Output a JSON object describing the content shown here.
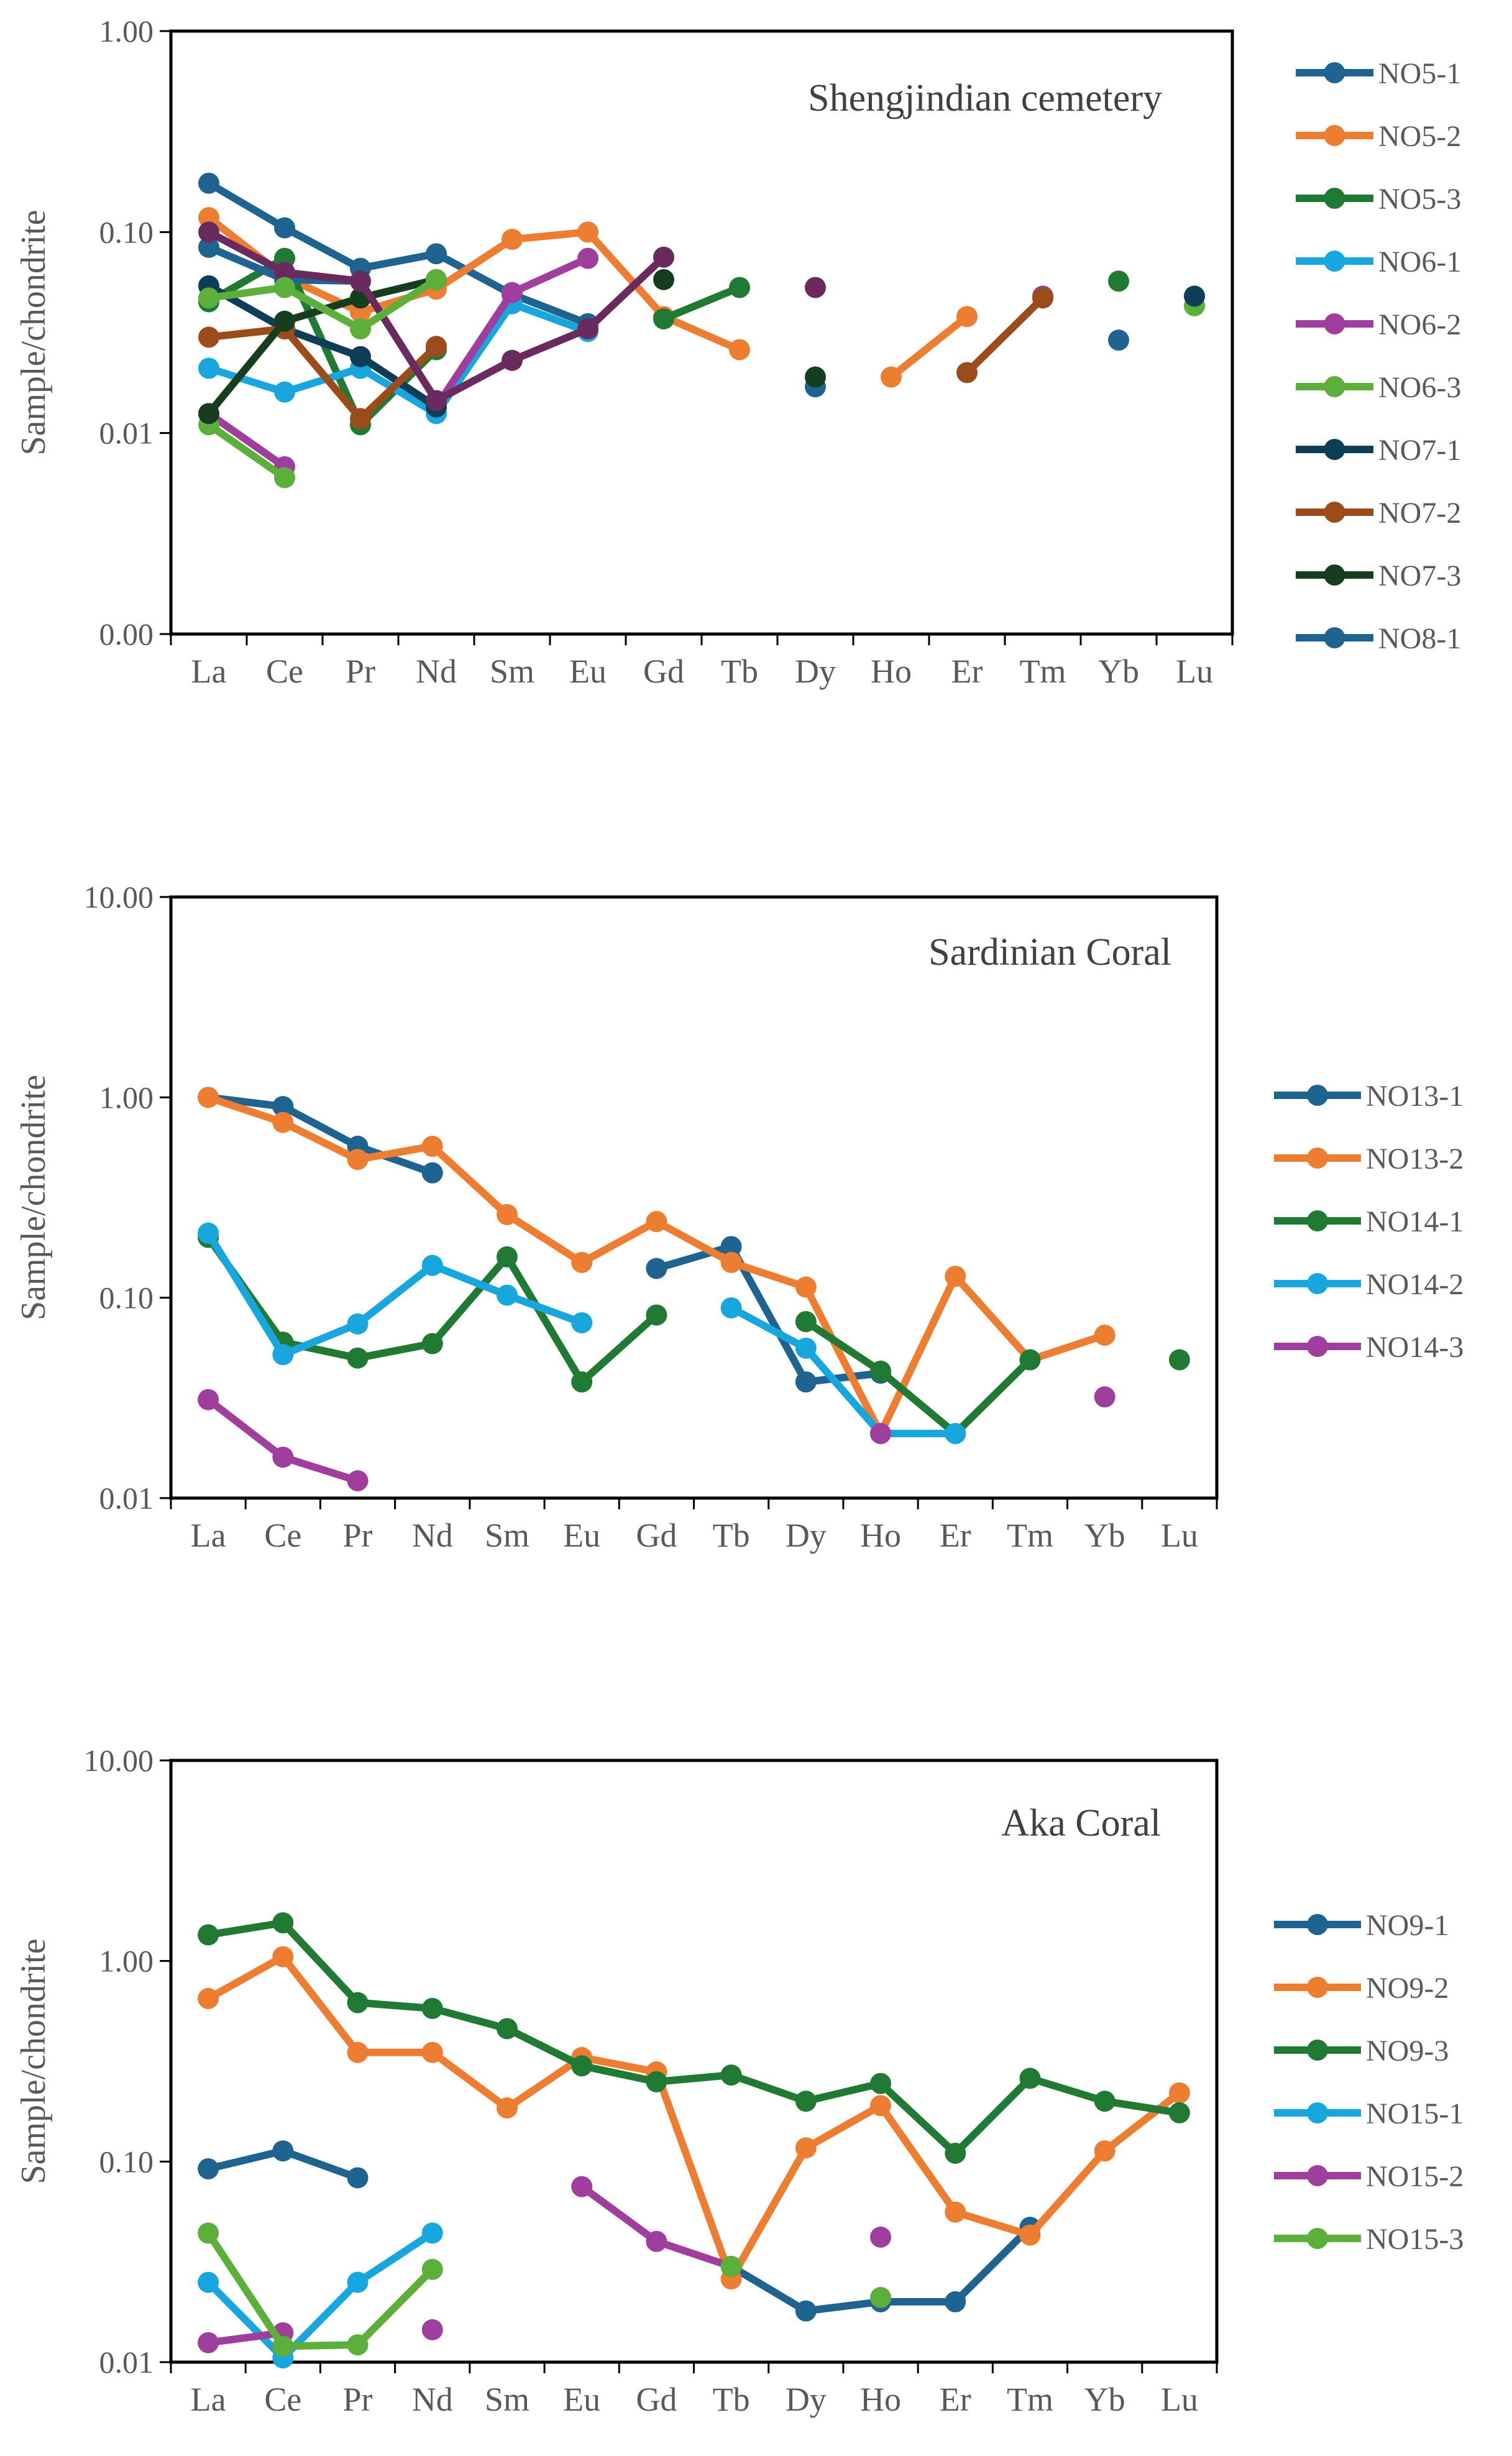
{
  "categories": [
    "La",
    "Ce",
    "Pr",
    "Nd",
    "Sm",
    "Eu",
    "Gd",
    "Tb",
    "Dy",
    "Ho",
    "Er",
    "Tm",
    "Yb",
    "Lu"
  ],
  "colors": {
    "steel_blue": "#1f6391",
    "orange": "#ed7d31",
    "green": "#217a33",
    "sky_blue": "#18a6de",
    "magenta": "#a03e9e",
    "light_green": "#5caf3a",
    "navy": "#0d3d57",
    "brown": "#9c4c1a",
    "dark_green": "#173d1f",
    "purple": "#6b2a5e"
  },
  "chart_data": [
    {
      "type": "line",
      "title": "Shengjindian cemetery",
      "ylabel": "Sample/chondrite",
      "xlabel": "",
      "yscale": "log",
      "ylim": [
        0.001,
        1
      ],
      "yticks": [
        0.001,
        0.01,
        0.1,
        1
      ],
      "yticklabels": [
        "0.00",
        "0.01",
        "0.10",
        "1.00"
      ],
      "categories": [
        "La",
        "Ce",
        "Pr",
        "Nd",
        "Sm",
        "Eu",
        "Gd",
        "Tb",
        "Dy",
        "Ho",
        "Er",
        "Tm",
        "Yb",
        "Lu"
      ],
      "legend": "right",
      "series": [
        {
          "name": "NO5-1",
          "color": "#1f6391",
          "values": [
            0.175,
            0.105,
            0.066,
            0.078,
            0.049,
            0.035,
            null,
            null,
            0.017,
            null,
            null,
            null,
            0.029,
            null
          ]
        },
        {
          "name": "NO5-2",
          "color": "#ed7d31",
          "values": [
            0.118,
            0.06,
            0.04,
            0.052,
            0.092,
            0.1,
            0.038,
            0.026,
            null,
            0.019,
            0.038,
            null,
            null,
            null
          ]
        },
        {
          "name": "NO5-3",
          "color": "#217a33",
          "values": [
            0.045,
            0.074,
            0.011,
            0.026,
            null,
            null,
            0.037,
            0.053,
            null,
            null,
            null,
            null,
            0.057,
            null
          ]
        },
        {
          "name": "NO6-1",
          "color": "#18a6de",
          "values": [
            0.021,
            0.016,
            0.021,
            0.0125,
            0.044,
            0.032,
            null,
            null,
            null,
            null,
            null,
            null,
            null,
            null
          ]
        },
        {
          "name": "NO6-2",
          "color": "#a03e9e",
          "values": [
            0.0125,
            0.0068,
            null,
            0.0135,
            0.05,
            0.074,
            null,
            null,
            null,
            null,
            null,
            0.048,
            null,
            null
          ]
        },
        {
          "name": "NO6-3",
          "color": "#5caf3a",
          "values": [
            0.011,
            0.006,
            null,
            null,
            null,
            null,
            null,
            null,
            null,
            null,
            null,
            null,
            null,
            0.043
          ]
        },
        {
          "name": "NO7-1",
          "color": "#0d3d57",
          "values": [
            0.054,
            0.033,
            0.024,
            0.0135,
            null,
            null,
            null,
            null,
            null,
            null,
            null,
            null,
            null,
            0.048
          ]
        },
        {
          "name": "NO7-2",
          "color": "#9c4c1a",
          "values": [
            0.03,
            0.033,
            0.0118,
            0.027,
            null,
            null,
            null,
            null,
            null,
            null,
            0.02,
            0.047,
            null,
            null
          ]
        },
        {
          "name": "NO7-3",
          "color": "#173d1f",
          "values": [
            0.0125,
            0.036,
            0.047,
            0.058,
            null,
            null,
            0.058,
            null,
            0.019,
            null,
            null,
            null,
            null,
            null
          ]
        },
        {
          "name": "NO8-1",
          "color": "#1f6391",
          "values": [
            0.084,
            0.058,
            0.057,
            null,
            null,
            null,
            null,
            null,
            null,
            null,
            null,
            null,
            null,
            null
          ]
        },
        {
          "name": "",
          "color": "#6b2a5e",
          "values": [
            0.1,
            0.063,
            0.057,
            0.0145,
            0.023,
            0.033,
            0.075,
            null,
            0.053,
            null,
            null,
            null,
            null,
            null
          ]
        },
        {
          "name": "",
          "color": "#5caf3a",
          "values": [
            0.047,
            0.053,
            0.033,
            0.058,
            null,
            null,
            null,
            null,
            null,
            null,
            null,
            null,
            null,
            null
          ]
        }
      ]
    },
    {
      "type": "line",
      "title": "Sardinian Coral",
      "ylabel": "Sample/chondrite",
      "xlabel": "",
      "yscale": "log",
      "ylim": [
        0.01,
        10
      ],
      "yticks": [
        0.01,
        0.1,
        1,
        10
      ],
      "yticklabels": [
        "0.01",
        "0.10",
        "1.00",
        "10.00"
      ],
      "categories": [
        "La",
        "Ce",
        "Pr",
        "Nd",
        "Sm",
        "Eu",
        "Gd",
        "Tb",
        "Dy",
        "Ho",
        "Er",
        "Tm",
        "Yb",
        "Lu"
      ],
      "legend": "right",
      "series": [
        {
          "name": "NO13-1",
          "color": "#1f6391",
          "values": [
            1.0,
            0.9,
            0.57,
            0.42,
            null,
            null,
            0.14,
            0.18,
            0.038,
            0.042,
            null,
            null,
            null,
            null
          ]
        },
        {
          "name": "NO13-2",
          "color": "#ed7d31",
          "values": [
            1.0,
            0.75,
            0.49,
            0.57,
            0.26,
            0.15,
            0.24,
            0.15,
            0.113,
            0.021,
            0.128,
            0.049,
            0.065,
            null
          ]
        },
        {
          "name": "NO14-1",
          "color": "#217a33",
          "values": [
            0.2,
            0.06,
            0.05,
            0.059,
            0.16,
            0.038,
            0.082,
            null,
            0.076,
            0.043,
            0.021,
            0.049,
            null,
            0.049
          ]
        },
        {
          "name": "NO14-2",
          "color": "#18a6de",
          "values": [
            0.21,
            0.052,
            0.074,
            0.145,
            0.103,
            0.075,
            null,
            0.089,
            0.056,
            0.021,
            0.021,
            null,
            null,
            null
          ]
        },
        {
          "name": "NO14-3",
          "color": "#a03e9e",
          "values": [
            0.031,
            0.016,
            0.0122,
            null,
            null,
            null,
            null,
            null,
            null,
            0.021,
            null,
            null,
            0.032,
            null
          ]
        }
      ]
    },
    {
      "type": "line",
      "title": "Aka Coral",
      "ylabel": "Sample/chondrite",
      "xlabel": "",
      "yscale": "log",
      "ylim": [
        0.01,
        10
      ],
      "yticks": [
        0.01,
        0.1,
        1,
        10
      ],
      "yticklabels": [
        "0.01",
        "0.10",
        "1.00",
        "10.00"
      ],
      "categories": [
        "La",
        "Ce",
        "Pr",
        "Nd",
        "Sm",
        "Eu",
        "Gd",
        "Tb",
        "Dy",
        "Ho",
        "Er",
        "Tm",
        "Yb",
        "Lu"
      ],
      "legend": "right",
      "series": [
        {
          "name": "NO9-1",
          "color": "#1f6391",
          "values": [
            0.092,
            0.113,
            0.083,
            null,
            null,
            null,
            null,
            0.03,
            0.018,
            0.02,
            0.02,
            0.047,
            null,
            null
          ]
        },
        {
          "name": "NO9-2",
          "color": "#ed7d31",
          "values": [
            0.65,
            1.05,
            0.35,
            0.35,
            0.185,
            0.33,
            0.28,
            0.026,
            0.117,
            0.19,
            0.056,
            0.043,
            0.113,
            0.22
          ]
        },
        {
          "name": "NO9-3",
          "color": "#217a33",
          "values": [
            1.35,
            1.55,
            0.62,
            0.58,
            0.46,
            0.3,
            0.25,
            0.27,
            0.2,
            0.245,
            0.11,
            0.26,
            0.2,
            0.175
          ]
        },
        {
          "name": "NO15-1",
          "color": "#18a6de",
          "values": [
            0.025,
            0.0105,
            0.025,
            0.044,
            null,
            null,
            null,
            null,
            null,
            null,
            null,
            null,
            null,
            null
          ]
        },
        {
          "name": "NO15-2",
          "color": "#a03e9e",
          "values": [
            0.0125,
            0.014,
            null,
            0.0145,
            null,
            0.075,
            0.04,
            0.03,
            null,
            0.042,
            null,
            null,
            null,
            null
          ]
        },
        {
          "name": "NO15-3",
          "color": "#5caf3a",
          "values": [
            0.044,
            0.012,
            0.0122,
            0.029,
            null,
            null,
            null,
            0.03,
            null,
            0.021,
            null,
            null,
            null,
            null
          ]
        }
      ]
    }
  ]
}
